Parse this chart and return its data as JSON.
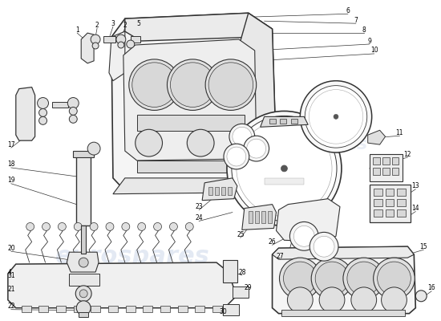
{
  "bg_color": "#ffffff",
  "lc": "#333333",
  "wm1_color": "#c8d4e8",
  "wm2_color": "#c8d4e8",
  "line_color": "#222222"
}
